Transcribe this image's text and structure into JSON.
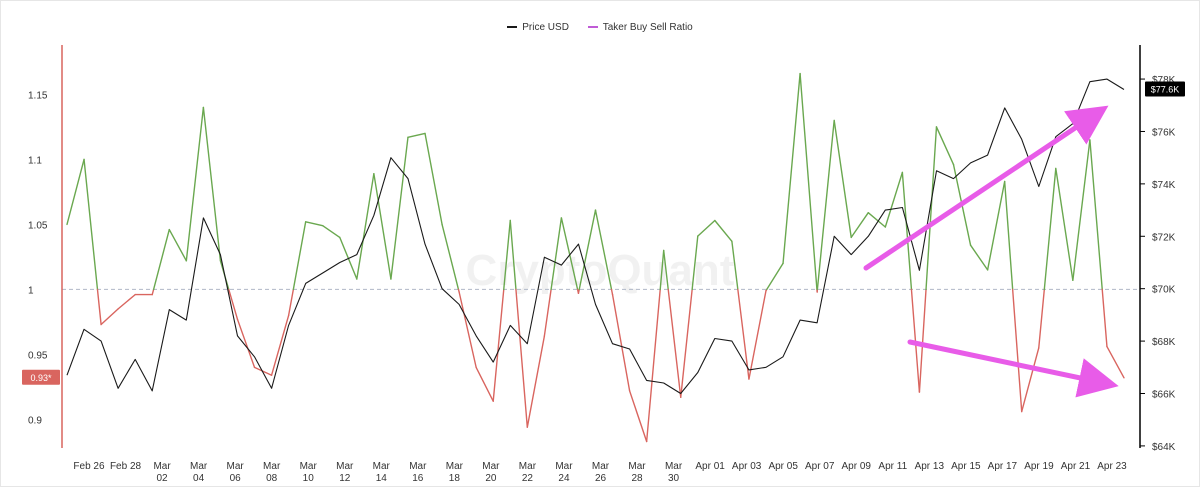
{
  "legend": {
    "price": {
      "label": "Price USD",
      "color": "#1a1a1a"
    },
    "ratio": {
      "label": "Taker Buy Sell Ratio",
      "color": "#c05bd6"
    }
  },
  "watermark": "CryptoQuant",
  "badges": {
    "ratio_current": "0.93*",
    "price_current": "$77.6K"
  },
  "colors": {
    "ratio_above": "#6aa84f",
    "ratio_below": "#d9655f",
    "price_line": "#1a1a1a",
    "left_axis": "#d9655f",
    "right_axis": "#000000",
    "reference": "#b0b8c8",
    "annotation_arrows": "#e85ce8"
  },
  "chart_data": {
    "type": "line",
    "title": "",
    "x_ticks": [
      "Feb 26",
      "Feb 28",
      "Mar\n02",
      "Mar\n04",
      "Mar\n06",
      "Mar\n08",
      "Mar\n10",
      "Mar\n12",
      "Mar\n14",
      "Mar\n16",
      "Mar\n18",
      "Mar\n20",
      "Mar\n22",
      "Mar\n24",
      "Mar\n26",
      "Mar\n28",
      "Mar\n30",
      "Apr 01",
      "Apr 03",
      "Apr 05",
      "Apr 07",
      "Apr 09",
      "Apr 11",
      "Apr 13",
      "Apr 15",
      "Apr 17",
      "Apr 19",
      "Apr 21",
      "Apr 23"
    ],
    "left_axis": {
      "ticks": [
        0.9,
        0.95,
        1,
        1.05,
        1.1,
        1.15
      ],
      "tick_labels": [
        "0.9",
        "0.95",
        "1",
        "1.05",
        "1.1",
        "1.15"
      ],
      "range": [
        0.878,
        1.188
      ]
    },
    "right_axis": {
      "ticks": [
        64000,
        66000,
        68000,
        70000,
        72000,
        74000,
        76000,
        78000
      ],
      "tick_labels": [
        "$64K",
        "$66K",
        "$68K",
        "$70K",
        "$72K",
        "$74K",
        "$76K",
        "$78K"
      ],
      "range": [
        63920,
        79300
      ]
    },
    "reference_line": 1,
    "series": [
      {
        "name": "Taker Buy Sell Ratio",
        "axis": "left",
        "values": [
          1.05,
          1.1,
          0.973,
          0.985,
          0.996,
          0.996,
          1.046,
          1.022,
          1.14,
          1.022,
          0.977,
          0.94,
          0.934,
          0.98,
          1.052,
          1.049,
          1.04,
          1.008,
          1.089,
          1.008,
          1.117,
          1.12,
          1.05,
          0.998,
          0.94,
          0.914,
          1.053,
          0.894,
          0.964,
          1.055,
          0.997,
          1.061,
          0.996,
          0.922,
          0.883,
          1.03,
          0.917,
          1.041,
          1.053,
          1.037,
          0.931,
          0.999,
          1.02,
          1.166,
          0.998,
          1.13,
          1.04,
          1.059,
          1.048,
          1.09,
          0.921,
          1.125,
          1.096,
          1.034,
          1.015,
          1.083,
          0.906,
          0.955,
          1.093,
          1.007,
          1.115,
          0.956,
          0.932
        ]
      },
      {
        "name": "Price USD",
        "axis": "right",
        "values": [
          66700,
          68450,
          68000,
          66200,
          67300,
          66100,
          69200,
          68800,
          72700,
          71300,
          68200,
          67400,
          66200,
          68600,
          70200,
          70600,
          71000,
          71300,
          72800,
          75000,
          74200,
          71700,
          70000,
          69400,
          68200,
          67200,
          68600,
          67900,
          71200,
          70900,
          71700,
          69400,
          67900,
          67700,
          66500,
          66400,
          66000,
          66800,
          68100,
          68000,
          66900,
          67000,
          67400,
          68800,
          68700,
          72000,
          71300,
          72000,
          73000,
          73100,
          70700,
          74500,
          74200,
          74800,
          75100,
          76900,
          75700,
          73900,
          75800,
          76300,
          77900,
          78000,
          77600
        ]
      }
    ]
  }
}
